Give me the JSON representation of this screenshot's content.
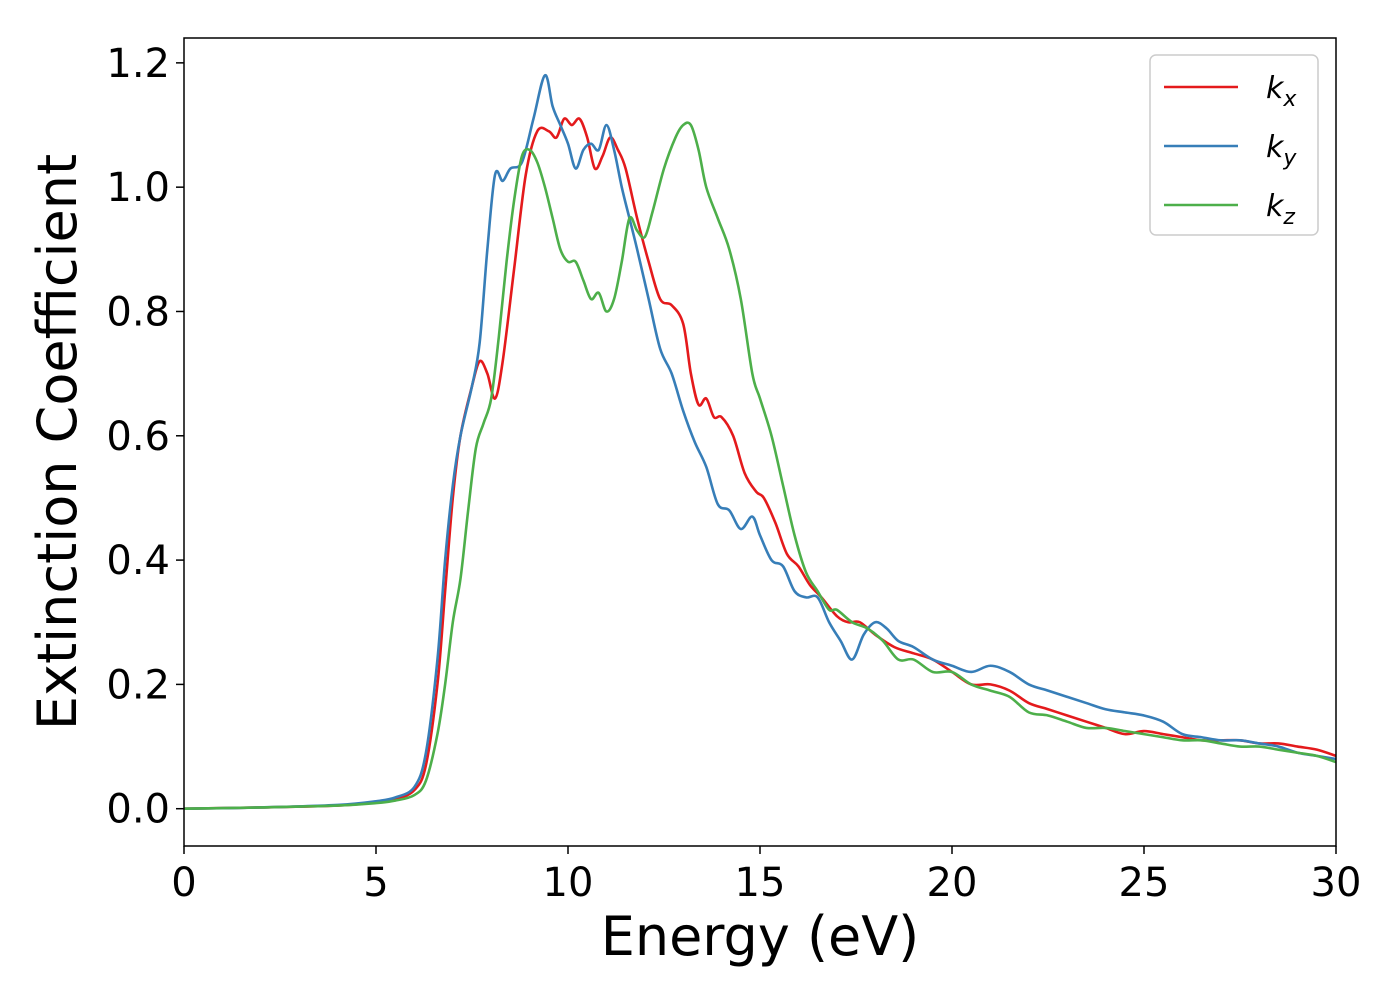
{
  "chart_data": {
    "type": "line",
    "title": "",
    "xlabel": "Energy (eV)",
    "ylabel": "Extinction Coefficient",
    "xlim": [
      0,
      30
    ],
    "ylim": [
      -0.06,
      1.24
    ],
    "xticks": [
      0,
      5,
      10,
      15,
      20,
      25,
      30
    ],
    "xtick_labels": [
      "0",
      "5",
      "10",
      "15",
      "20",
      "25",
      "30"
    ],
    "yticks": [
      0.0,
      0.2,
      0.4,
      0.6,
      0.8,
      1.0,
      1.2
    ],
    "ytick_labels": [
      "0.0",
      "0.2",
      "0.4",
      "0.6",
      "0.8",
      "1.0",
      "1.2"
    ],
    "grid": false,
    "legend_position": "top-right",
    "series": [
      {
        "name": "k_x",
        "label_base": "k",
        "label_sub": "x",
        "color": "#e41a1c",
        "x": [
          0,
          2,
          4,
          5,
          5.5,
          6,
          6.3,
          6.6,
          6.8,
          7.0,
          7.2,
          7.5,
          7.7,
          7.9,
          8.1,
          8.3,
          8.6,
          8.9,
          9.2,
          9.5,
          9.7,
          9.9,
          10.1,
          10.3,
          10.5,
          10.7,
          10.9,
          11.1,
          11.3,
          11.5,
          11.8,
          12.1,
          12.4,
          12.7,
          13.0,
          13.2,
          13.4,
          13.6,
          13.8,
          14.0,
          14.3,
          14.6,
          14.9,
          15.1,
          15.4,
          15.7,
          16.0,
          16.3,
          16.6,
          17.0,
          17.3,
          17.6,
          18.0,
          18.5,
          19.0,
          19.5,
          20.0,
          20.5,
          21.0,
          21.5,
          22.0,
          22.5,
          23.0,
          23.5,
          24.0,
          24.5,
          25.0,
          25.5,
          26.0,
          26.5,
          27.0,
          27.5,
          28.0,
          28.5,
          29.0,
          29.5,
          30.0
        ],
        "y": [
          0,
          0.002,
          0.005,
          0.01,
          0.015,
          0.03,
          0.07,
          0.2,
          0.35,
          0.5,
          0.6,
          0.68,
          0.72,
          0.7,
          0.66,
          0.72,
          0.87,
          1.02,
          1.09,
          1.09,
          1.08,
          1.11,
          1.1,
          1.11,
          1.08,
          1.03,
          1.05,
          1.08,
          1.06,
          1.03,
          0.95,
          0.88,
          0.82,
          0.81,
          0.78,
          0.7,
          0.65,
          0.66,
          0.63,
          0.63,
          0.6,
          0.54,
          0.51,
          0.5,
          0.46,
          0.41,
          0.39,
          0.36,
          0.34,
          0.31,
          0.3,
          0.3,
          0.28,
          0.26,
          0.25,
          0.24,
          0.22,
          0.2,
          0.2,
          0.19,
          0.17,
          0.16,
          0.15,
          0.14,
          0.13,
          0.12,
          0.125,
          0.12,
          0.115,
          0.11,
          0.11,
          0.11,
          0.105,
          0.105,
          0.1,
          0.095,
          0.085
        ]
      },
      {
        "name": "k_y",
        "label_base": "k",
        "label_sub": "y",
        "color": "#377eb8",
        "x": [
          0,
          2,
          4,
          5,
          5.5,
          6,
          6.3,
          6.6,
          6.8,
          7.0,
          7.2,
          7.5,
          7.7,
          7.9,
          8.1,
          8.3,
          8.5,
          8.8,
          9.1,
          9.4,
          9.6,
          9.8,
          10.0,
          10.2,
          10.4,
          10.6,
          10.8,
          11.0,
          11.2,
          11.4,
          11.6,
          11.8,
          12.1,
          12.4,
          12.7,
          13.0,
          13.3,
          13.6,
          13.9,
          14.2,
          14.5,
          14.8,
          15.0,
          15.3,
          15.6,
          15.9,
          16.2,
          16.5,
          16.8,
          17.1,
          17.4,
          17.7,
          18.0,
          18.3,
          18.6,
          19.0,
          19.5,
          20.0,
          20.5,
          21.0,
          21.5,
          22.0,
          22.5,
          23.0,
          23.5,
          24.0,
          24.5,
          25.0,
          25.5,
          26.0,
          26.5,
          27.0,
          27.5,
          28.0,
          28.5,
          29.0,
          29.5,
          30.0
        ],
        "y": [
          0,
          0.002,
          0.006,
          0.012,
          0.018,
          0.035,
          0.09,
          0.24,
          0.4,
          0.52,
          0.6,
          0.68,
          0.75,
          0.9,
          1.02,
          1.01,
          1.03,
          1.04,
          1.11,
          1.18,
          1.13,
          1.1,
          1.07,
          1.03,
          1.06,
          1.07,
          1.06,
          1.1,
          1.06,
          1.0,
          0.95,
          0.9,
          0.82,
          0.74,
          0.7,
          0.64,
          0.59,
          0.55,
          0.49,
          0.48,
          0.45,
          0.47,
          0.44,
          0.4,
          0.39,
          0.35,
          0.34,
          0.34,
          0.3,
          0.27,
          0.24,
          0.28,
          0.3,
          0.29,
          0.27,
          0.26,
          0.24,
          0.23,
          0.22,
          0.23,
          0.22,
          0.2,
          0.19,
          0.18,
          0.17,
          0.16,
          0.155,
          0.15,
          0.14,
          0.12,
          0.115,
          0.11,
          0.11,
          0.105,
          0.1,
          0.09,
          0.085,
          0.08
        ]
      },
      {
        "name": "k_z",
        "label_base": "k",
        "label_sub": "z",
        "color": "#4daf4a",
        "x": [
          0,
          2,
          4,
          5,
          5.5,
          6,
          6.3,
          6.6,
          6.8,
          7.0,
          7.2,
          7.4,
          7.6,
          7.8,
          8.0,
          8.2,
          8.4,
          8.6,
          8.8,
          9.0,
          9.2,
          9.4,
          9.6,
          9.8,
          10.0,
          10.2,
          10.4,
          10.6,
          10.8,
          11.0,
          11.2,
          11.4,
          11.6,
          11.8,
          12.0,
          12.2,
          12.5,
          12.8,
          13.0,
          13.2,
          13.4,
          13.6,
          13.9,
          14.2,
          14.5,
          14.8,
          15.0,
          15.3,
          15.6,
          15.9,
          16.2,
          16.5,
          16.8,
          17.0,
          17.4,
          17.8,
          18.2,
          18.6,
          19.0,
          19.5,
          20.0,
          20.5,
          21.0,
          21.5,
          22.0,
          22.5,
          23.0,
          23.5,
          24.0,
          24.5,
          25.0,
          25.5,
          26.0,
          26.5,
          27.0,
          27.5,
          28.0,
          28.5,
          29.0,
          29.5,
          30.0
        ],
        "y": [
          0,
          0.002,
          0.005,
          0.009,
          0.013,
          0.022,
          0.045,
          0.12,
          0.2,
          0.3,
          0.37,
          0.48,
          0.58,
          0.62,
          0.66,
          0.76,
          0.88,
          0.98,
          1.05,
          1.06,
          1.04,
          1.0,
          0.95,
          0.9,
          0.88,
          0.88,
          0.85,
          0.82,
          0.83,
          0.8,
          0.82,
          0.88,
          0.95,
          0.93,
          0.92,
          0.96,
          1.03,
          1.08,
          1.1,
          1.1,
          1.06,
          1.0,
          0.95,
          0.9,
          0.82,
          0.7,
          0.66,
          0.6,
          0.52,
          0.44,
          0.38,
          0.35,
          0.32,
          0.32,
          0.3,
          0.29,
          0.27,
          0.24,
          0.24,
          0.22,
          0.22,
          0.2,
          0.19,
          0.18,
          0.155,
          0.15,
          0.14,
          0.13,
          0.13,
          0.125,
          0.12,
          0.115,
          0.11,
          0.11,
          0.105,
          0.1,
          0.1,
          0.095,
          0.09,
          0.085,
          0.075
        ]
      }
    ]
  }
}
